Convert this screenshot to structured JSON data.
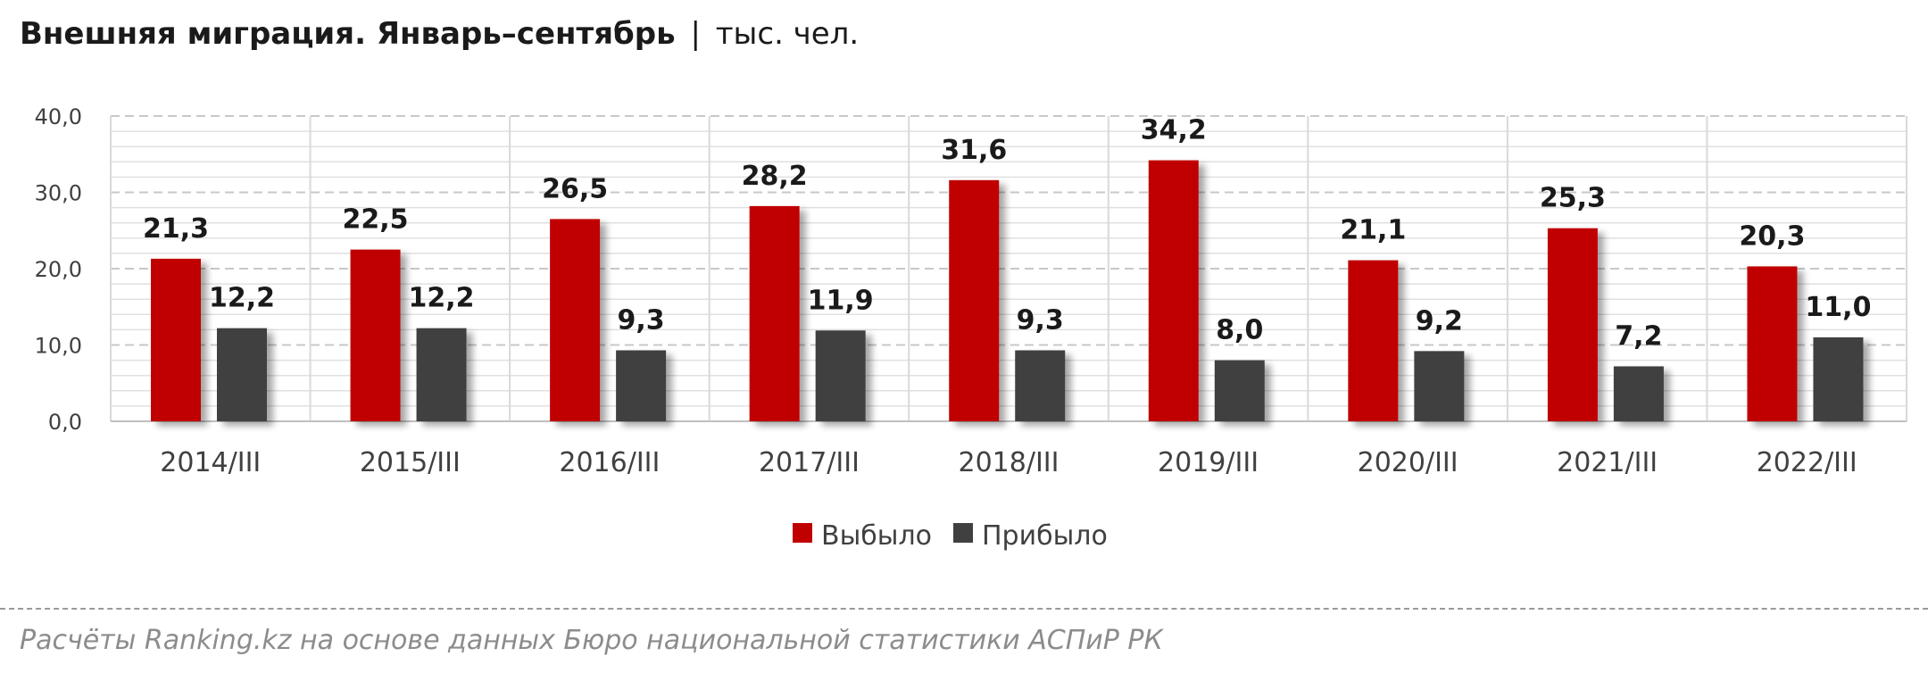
{
  "header": {
    "title": "Внешняя миграция. Январь–сентябрь",
    "separator": "|",
    "unit": "тыс. чел."
  },
  "chart_data": {
    "type": "bar",
    "categories": [
      "2014/III",
      "2015/III",
      "2016/III",
      "2017/III",
      "2018/III",
      "2019/III",
      "2020/III",
      "2021/III",
      "2022/III"
    ],
    "series": [
      {
        "name": "Выбыло",
        "color": "#c00000",
        "values": [
          21.3,
          22.5,
          26.5,
          28.2,
          31.6,
          34.2,
          21.1,
          25.3,
          20.3
        ],
        "labels": [
          "21,3",
          "22,5",
          "26,5",
          "28,2",
          "31,6",
          "34,2",
          "21,1",
          "25,3",
          "20,3"
        ]
      },
      {
        "name": "Прибыло",
        "color": "#404040",
        "values": [
          12.2,
          12.2,
          9.3,
          11.9,
          9.3,
          8.0,
          9.2,
          7.2,
          11.0
        ],
        "labels": [
          "12,2",
          "12,2",
          "9,3",
          "11,9",
          "9,3",
          "8,0",
          "9,2",
          "7,2",
          "11,0"
        ]
      }
    ],
    "ylim": [
      0,
      40
    ],
    "yticks": [
      0,
      10,
      20,
      30,
      40
    ],
    "ytick_labels": [
      "0,0",
      "10,0",
      "20,0",
      "30,0",
      "40,0"
    ],
    "grid": true,
    "legend_position": "bottom",
    "xlabel": "",
    "ylabel": ""
  },
  "footer": {
    "source": "Расчёты Ranking.kz на основе данных Бюро национальной статистики АСПиР РК"
  }
}
